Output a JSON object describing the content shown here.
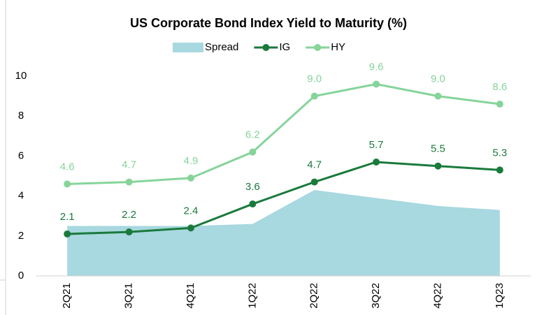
{
  "chart_data": {
    "type": "line",
    "title": "US Corporate Bond Index Yield to Maturity (%)",
    "categories": [
      "2Q21",
      "3Q21",
      "4Q21",
      "1Q22",
      "2Q22",
      "3Q22",
      "4Q22",
      "1Q23"
    ],
    "series": [
      {
        "name": "Spread",
        "kind": "area",
        "color": "#a8d8e0",
        "values": [
          2.5,
          2.5,
          2.5,
          2.6,
          4.3,
          3.9,
          3.5,
          3.3
        ]
      },
      {
        "name": "IG",
        "kind": "line",
        "color": "#1a7a3c",
        "values": [
          2.1,
          2.2,
          2.4,
          3.6,
          4.7,
          5.7,
          5.5,
          5.3
        ],
        "value_labels": [
          "2.1",
          "2.2",
          "2.4",
          "3.6",
          "4.7",
          "5.7",
          "5.5",
          "5.3"
        ]
      },
      {
        "name": "HY",
        "kind": "line",
        "color": "#86d49a",
        "values": [
          4.6,
          4.7,
          4.9,
          6.2,
          9.0,
          9.6,
          9.0,
          8.6
        ],
        "value_labels": [
          "4.6",
          "4.7",
          "4.9",
          "6.2",
          "9.0",
          "9.6",
          "9.0",
          "8.6"
        ]
      }
    ],
    "ylim": [
      0,
      10
    ],
    "yticks": [
      0,
      2,
      4,
      6,
      8,
      10
    ],
    "grid": false,
    "legend": "top"
  }
}
